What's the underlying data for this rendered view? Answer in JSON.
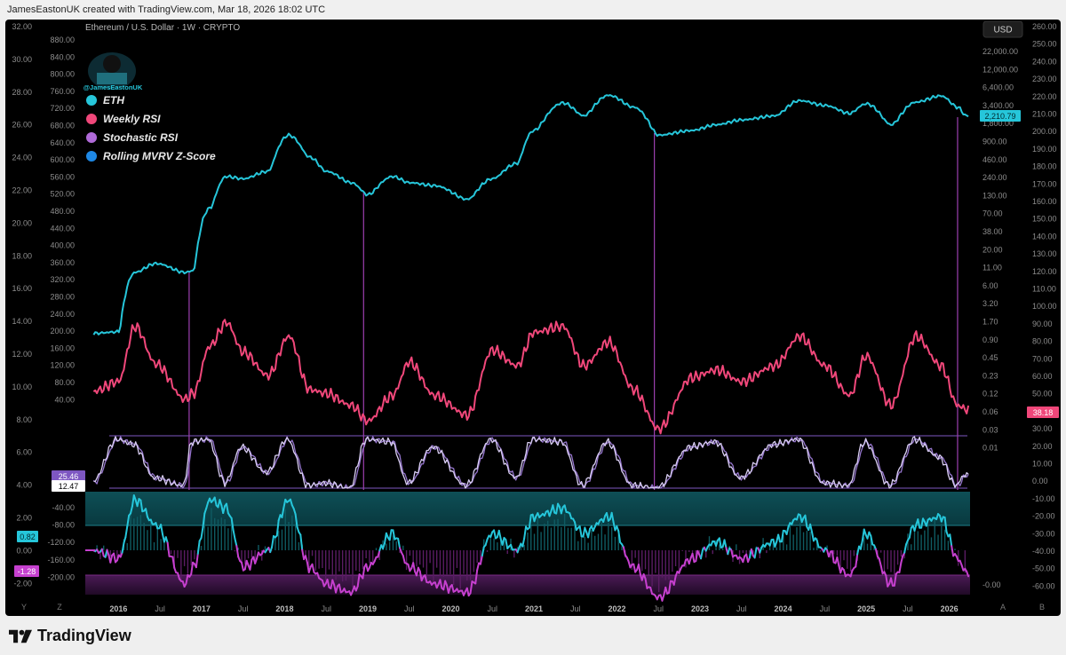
{
  "header": {
    "credit": "JamesEastonUK created with TradingView.com, Mar 18, 2026 18:02 UTC"
  },
  "chart_header": {
    "symbol_line": "Ethereum / U.S. Dollar · 1W · CRYPTO",
    "currency_button": "USD",
    "handle": "@JamesEastonUK"
  },
  "legend": [
    {
      "label": "ETH",
      "color": "#26c6da"
    },
    {
      "label": "Weekly RSI",
      "color": "#f0477a"
    },
    {
      "label": "Stochastic RSI",
      "color": "#b06ad8"
    },
    {
      "label": "Rolling MVRV Z-Score",
      "color": "#1e88e5"
    }
  ],
  "colors": {
    "eth": "#26c6da",
    "rsi": "#f0477a",
    "stoch_k": "#d8cdf2",
    "stoch_d": "#9575cd",
    "z_pos": "#26c6da",
    "z_neg": "#c640cf",
    "marker": "#9c3fb0",
    "band_line": "#7e57c2"
  },
  "axes": {
    "far_left": [
      "32.00",
      "30.00",
      "28.00",
      "26.00",
      "24.00",
      "22.00",
      "20.00",
      "18.00",
      "16.00",
      "14.00",
      "12.00",
      "10.00",
      "8.00",
      "6.00",
      "4.00",
      "2.00",
      "0.00",
      "-2.00"
    ],
    "left_inner": [
      "880.00",
      "840.00",
      "800.00",
      "760.00",
      "720.00",
      "680.00",
      "640.00",
      "600.00",
      "560.00",
      "520.00",
      "480.00",
      "440.00",
      "400.00",
      "360.00",
      "320.00",
      "280.00",
      "240.00",
      "200.00",
      "160.00",
      "120.00",
      "80.00",
      "40.00",
      "-40.00",
      "-80.00",
      "-120.00",
      "-160.00",
      "-200.00"
    ],
    "right_inner": [
      "22,000.00",
      "12,000.00",
      "6,400.00",
      "3,400.00",
      "1,800.00",
      "900.00",
      "460.00",
      "240.00",
      "130.00",
      "70.00",
      "38.00",
      "20.00",
      "11.00",
      "6.00",
      "3.20",
      "1.70",
      "0.90",
      "0.45",
      "0.23",
      "0.12",
      "0.06",
      "0.03",
      "0.01",
      "-0.00"
    ],
    "far_right": [
      "260.00",
      "250.00",
      "240.00",
      "230.00",
      "220.00",
      "210.00",
      "200.00",
      "190.00",
      "180.00",
      "170.00",
      "160.00",
      "150.00",
      "140.00",
      "130.00",
      "120.00",
      "110.00",
      "100.00",
      "90.00",
      "80.00",
      "70.00",
      "60.00",
      "50.00",
      "40.00",
      "30.00",
      "20.00",
      "10.00",
      "0.00",
      "-10.00",
      "-20.00",
      "-30.00",
      "-40.00",
      "-50.00",
      "-60.00"
    ],
    "time": [
      "2016",
      "Jul",
      "2017",
      "Jul",
      "2018",
      "Jul",
      "2019",
      "Jul",
      "2020",
      "Jul",
      "2021",
      "Jul",
      "2022",
      "Jul",
      "2023",
      "Jul",
      "2024",
      "Jul",
      "2025",
      "Jul",
      "2026"
    ],
    "corner_left": [
      "Y",
      "Z"
    ],
    "corner_right": [
      "A",
      "B"
    ]
  },
  "value_tags": {
    "eth_price": "2,210.79",
    "rsi": "38.18",
    "stoch_k": "25.46",
    "stoch_d": "12.47",
    "z_upper": "0.82",
    "z_lower": "-1.28"
  },
  "footer": {
    "brand": "TradingView"
  },
  "chart_data": {
    "type": "line",
    "x": [
      2015.7,
      2016.0,
      2016.2,
      2016.45,
      2016.8,
      2016.9,
      2017.1,
      2017.3,
      2017.5,
      2017.8,
      2018.05,
      2018.3,
      2018.5,
      2018.8,
      2019.0,
      2019.3,
      2019.5,
      2019.8,
      2020.2,
      2020.5,
      2020.8,
      2021.0,
      2021.35,
      2021.6,
      2021.9,
      2022.2,
      2022.5,
      2022.9,
      2023.2,
      2023.5,
      2023.9,
      2024.2,
      2024.5,
      2024.8,
      2025.0,
      2025.3,
      2025.6,
      2025.9,
      2026.1,
      2026.2
    ],
    "series": [
      {
        "name": "ETH",
        "scale": "log",
        "values": [
          0.9,
          0.95,
          8,
          11,
          8,
          8.5,
          80,
          250,
          230,
          300,
          1100,
          500,
          300,
          200,
          130,
          250,
          200,
          180,
          110,
          230,
          400,
          1300,
          3500,
          2200,
          4600,
          3000,
          1100,
          1300,
          1600,
          1900,
          2200,
          3800,
          3200,
          2400,
          3400,
          1600,
          3600,
          4500,
          3000,
          2210
        ]
      },
      {
        "name": "Weekly RSI",
        "values": [
          47,
          52,
          80,
          61,
          43,
          46,
          70,
          82,
          67,
          55,
          75,
          48,
          46,
          40,
          32,
          45,
          62,
          45,
          35,
          68,
          60,
          77,
          80,
          60,
          72,
          48,
          28,
          54,
          58,
          52,
          60,
          75,
          60,
          45,
          65,
          40,
          75,
          60,
          40,
          38
        ]
      },
      {
        "name": "Stochastic RSI",
        "values": [
          10,
          95,
          85,
          20,
          5,
          90,
          95,
          10,
          80,
          30,
          95,
          5,
          10,
          0,
          95,
          90,
          10,
          80,
          5,
          95,
          20,
          95,
          90,
          5,
          90,
          5,
          0,
          80,
          90,
          20,
          85,
          95,
          10,
          5,
          90,
          5,
          95,
          60,
          5,
          25
        ]
      },
      {
        "name": "Rolling MVRV Z-Score",
        "values": [
          0,
          -0.5,
          3,
          1.5,
          -2,
          -1,
          3,
          2.5,
          -1,
          0,
          3,
          -1,
          -2,
          -2.5,
          -1,
          1,
          -1,
          -2,
          -2.5,
          1,
          0,
          2,
          2.5,
          1,
          2,
          -1,
          -2.8,
          -0.5,
          0.5,
          -0.5,
          0.5,
          2,
          0,
          -1.5,
          1,
          -2,
          1.5,
          2,
          -0.5,
          -1.28
        ]
      }
    ],
    "y_ranges": {
      "eth_left": [
        0,
        880
      ],
      "z_score": [
        -2,
        32
      ]
    }
  }
}
